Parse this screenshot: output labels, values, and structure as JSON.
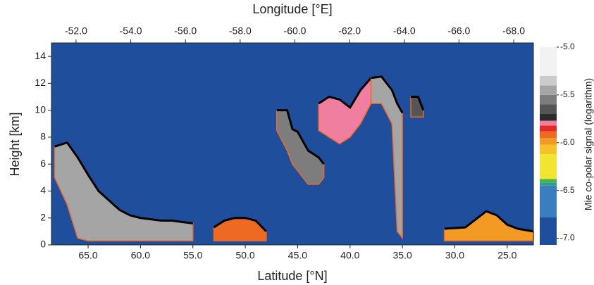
{
  "chart_data": {
    "type": "curtain",
    "top_axis_label": "Longitude [°E]",
    "x_label": "Latitude [°N]",
    "y_label": "Height [km]",
    "colorbar_label": "Mie co-polar signal (logarithm)",
    "xlim": [
      68.5,
      22.5
    ],
    "xticks": [
      {
        "value": 65,
        "label": "65.0"
      },
      {
        "value": 60,
        "label": "60.0"
      },
      {
        "value": 55,
        "label": "55.0"
      },
      {
        "value": 50,
        "label": "50.0"
      },
      {
        "value": 45,
        "label": "45.0"
      },
      {
        "value": 40,
        "label": "40.0"
      },
      {
        "value": 35,
        "label": "35.0"
      },
      {
        "value": 30,
        "label": "30.0"
      },
      {
        "value": 25,
        "label": "25.0"
      }
    ],
    "x2lim": [
      -51.1,
      -68.72
    ],
    "x2ticks": [
      {
        "value": -52,
        "label": "-52.0"
      },
      {
        "value": -54,
        "label": "-54.0"
      },
      {
        "value": -56,
        "label": "-56.0"
      },
      {
        "value": -58,
        "label": "-58.0"
      },
      {
        "value": -60,
        "label": "-60.0"
      },
      {
        "value": -62,
        "label": "-62.0"
      },
      {
        "value": -64,
        "label": "-64.0"
      },
      {
        "value": -66,
        "label": "-66.0"
      },
      {
        "value": -68,
        "label": "-68.0"
      }
    ],
    "ylim": [
      0,
      15
    ],
    "yticks": [
      0,
      2,
      4,
      6,
      8,
      10,
      12,
      14
    ],
    "background_value": -6.9,
    "colorbar": {
      "bounds": [
        -7.07,
        -6.78,
        -6.45,
        -6.42,
        -6.38,
        -6.12,
        -6.02,
        -5.95,
        -5.88,
        -5.82,
        -5.77,
        -5.7,
        -5.6,
        -5.5,
        -5.4,
        -5.3,
        -5.0
      ],
      "colors": [
        "#1f4e9c",
        "#3a7ebf",
        "#2e9d8a",
        "#4caf50",
        "#f0e632",
        "#f7c12a",
        "#f39a25",
        "#ee6a22",
        "#e32b2b",
        "#ef7ea0",
        "#2b2b2b",
        "#555555",
        "#7d7d7d",
        "#a5a5a5",
        "#cbcbcb",
        "#f2f2f2"
      ],
      "ticks": [
        {
          "value": -5,
          "label": "-5.0"
        },
        {
          "value": -5.5,
          "label": "-5.5"
        },
        {
          "value": -6,
          "label": "-6.0"
        },
        {
          "value": -6.5,
          "label": "-6.5"
        },
        {
          "value": -7,
          "label": "-7.0"
        }
      ]
    },
    "features": [
      {
        "lat": [
          68.2,
          67,
          66,
          65,
          64,
          63,
          62,
          61,
          60,
          59,
          58,
          57,
          56,
          55
        ],
        "top": [
          7.3,
          7.6,
          6.5,
          5.2,
          4.0,
          3.3,
          2.6,
          2.2,
          2.0,
          1.9,
          1.8,
          1.8,
          1.7,
          1.6
        ],
        "base": [
          5.0,
          3.0,
          0.5,
          0.3,
          0.3,
          0.3,
          0.3,
          0.3,
          0.3,
          0.3,
          0.3,
          0.3,
          0.3,
          0.3
        ],
        "value": -5.45
      },
      {
        "lat": [
          53,
          52,
          51,
          50,
          49,
          48
        ],
        "top": [
          1.3,
          1.8,
          2.0,
          2.0,
          1.8,
          1.0
        ],
        "base": [
          0.3,
          0.3,
          0.3,
          0.3,
          0.3,
          0.3
        ],
        "value": -5.92
      },
      {
        "lat": [
          47,
          46,
          45.5,
          45,
          44,
          43,
          42.5
        ],
        "top": [
          10.0,
          10.0,
          8.6,
          8.4,
          7.0,
          6.5,
          6.0
        ],
        "base": [
          8.5,
          7.0,
          6.0,
          5.5,
          4.5,
          4.5,
          5.0
        ],
        "value": -5.55
      },
      {
        "lat": [
          43,
          42,
          41,
          40,
          39,
          38
        ],
        "top": [
          10.5,
          11.0,
          10.8,
          10.2,
          11.5,
          12.4
        ],
        "base": [
          8.5,
          8.0,
          7.5,
          8.0,
          9.0,
          10.5
        ],
        "value": -5.8
      },
      {
        "lat": [
          38,
          37,
          36,
          35.5,
          35
        ],
        "top": [
          12.4,
          12.5,
          11.5,
          10.5,
          9.8
        ],
        "base": [
          10.5,
          10.5,
          9.0,
          1.0,
          0.5
        ],
        "value": -5.45
      },
      {
        "lat": [
          34.2,
          33.5,
          33
        ],
        "top": [
          11.0,
          11.0,
          10.0
        ],
        "base": [
          9.5,
          9.5,
          9.5
        ],
        "value": -5.65
      },
      {
        "lat": [
          31,
          29,
          27,
          26,
          25,
          24,
          22.5
        ],
        "top": [
          1.2,
          1.3,
          2.5,
          2.2,
          1.5,
          1.2,
          1.0
        ],
        "base": [
          0.3,
          0.3,
          0.3,
          0.3,
          0.3,
          0.3,
          0.3
        ],
        "value": -6.0
      }
    ]
  }
}
